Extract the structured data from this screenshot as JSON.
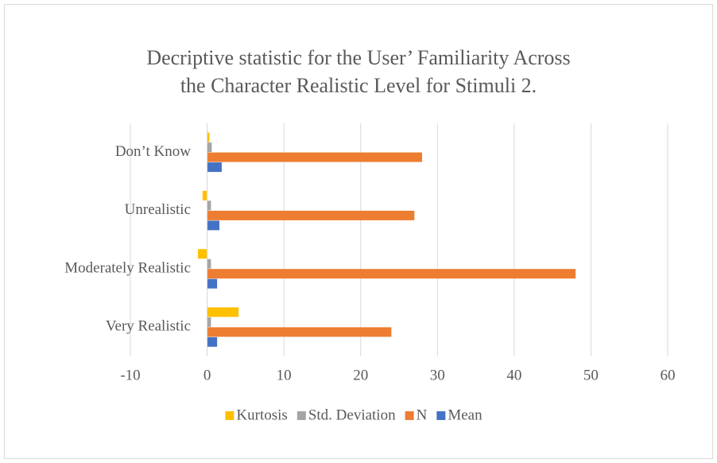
{
  "chart_data": {
    "type": "bar",
    "orientation": "horizontal",
    "title": [
      "Decriptive statistic for the User’ Familiarity Across",
      "the Character Realistic Level for Stimuli 2."
    ],
    "categories": [
      "Don’t Know",
      "Unrealistic",
      "Moderately Realistic",
      "Very Realistic"
    ],
    "series": [
      {
        "name": "Kurtosis",
        "color": "#ffc000",
        "values": [
          0.3,
          -0.6,
          -1.2,
          4.1
        ]
      },
      {
        "name": "Std. Deviation",
        "color": "#a5a5a5",
        "values": [
          0.6,
          0.5,
          0.5,
          0.5
        ]
      },
      {
        "name": "N",
        "color": "#ed7d31",
        "values": [
          28,
          27,
          48,
          24
        ]
      },
      {
        "name": "Mean",
        "color": "#4472c4",
        "values": [
          1.9,
          1.6,
          1.3,
          1.3
        ]
      }
    ],
    "xlim": [
      -10,
      60
    ],
    "xticks": [
      -10,
      0,
      10,
      20,
      30,
      40,
      50,
      60
    ],
    "grid": true,
    "legend": "bottom"
  }
}
